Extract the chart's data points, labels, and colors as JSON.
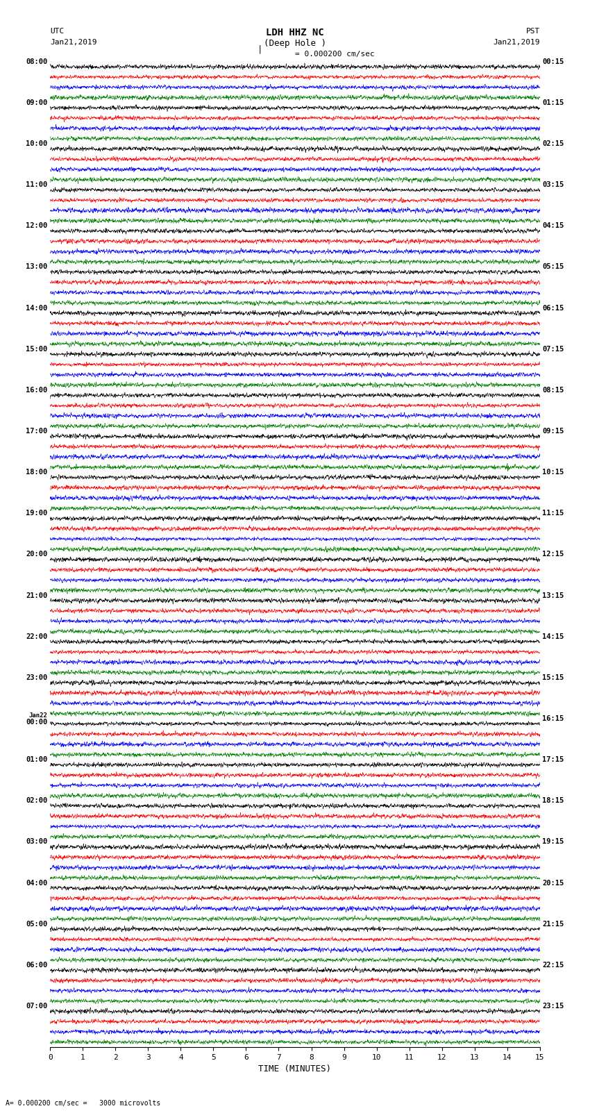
{
  "title_line1": "LDH HHZ NC",
  "title_line2": "(Deep Hole )",
  "scale_label": "= 0.000200 cm/sec",
  "left_label_top": "UTC",
  "left_label_date": "Jan21,2019",
  "right_label_top": "PST",
  "right_label_date": "Jan21,2019",
  "xlabel": "TIME (MINUTES)",
  "bottom_note": "= 0.000200 cm/sec =   3000 microvolts",
  "colors": [
    "black",
    "red",
    "blue",
    "green"
  ],
  "n_rows": 47,
  "n_minutes": 15,
  "sample_rate": 100,
  "fig_width": 8.5,
  "fig_height": 16.13,
  "left_times_utc": [
    "08:00",
    "",
    "",
    "",
    "09:00",
    "",
    "",
    "",
    "10:00",
    "",
    "",
    "",
    "11:00",
    "",
    "",
    "",
    "12:00",
    "",
    "",
    "",
    "13:00",
    "",
    "",
    "",
    "14:00",
    "",
    "",
    "",
    "15:00",
    "",
    "",
    "",
    "16:00",
    "",
    "",
    "",
    "17:00",
    "",
    "",
    "",
    "18:00",
    "",
    "",
    "",
    "19:00",
    "",
    "",
    "",
    "20:00",
    "",
    "",
    "",
    "21:00",
    "",
    "",
    "",
    "22:00",
    "",
    "",
    "",
    "23:00",
    "",
    "",
    "",
    "Jan22",
    "00:00",
    "",
    "",
    "",
    "01:00",
    "",
    "",
    "",
    "02:00",
    "",
    "",
    "",
    "03:00",
    "",
    "",
    "",
    "04:00",
    "",
    "",
    "",
    "05:00",
    "",
    "",
    "",
    "06:00",
    "",
    "",
    "",
    "07:00",
    ""
  ],
  "right_times_pst": [
    "00:15",
    "",
    "",
    "",
    "01:15",
    "",
    "",
    "",
    "02:15",
    "",
    "",
    "",
    "03:15",
    "",
    "",
    "",
    "04:15",
    "",
    "",
    "",
    "05:15",
    "",
    "",
    "",
    "06:15",
    "",
    "",
    "",
    "07:15",
    "",
    "",
    "",
    "08:15",
    "",
    "",
    "",
    "09:15",
    "",
    "",
    "",
    "10:15",
    "",
    "",
    "",
    "11:15",
    "",
    "",
    "",
    "12:15",
    "",
    "",
    "",
    "13:15",
    "",
    "",
    "",
    "14:15",
    "",
    "",
    "",
    "15:15",
    "",
    "",
    "",
    "16:15",
    "",
    "",
    "",
    "17:15",
    "",
    "",
    "",
    "18:15",
    "",
    "",
    "",
    "19:15",
    "",
    "",
    "",
    "20:15",
    "",
    "",
    "",
    "21:15",
    "",
    "",
    "",
    "22:15",
    "",
    "",
    "",
    "23:15",
    ""
  ],
  "bg_color": "white",
  "line_width": 0.4,
  "amplitude_scale": 0.35
}
